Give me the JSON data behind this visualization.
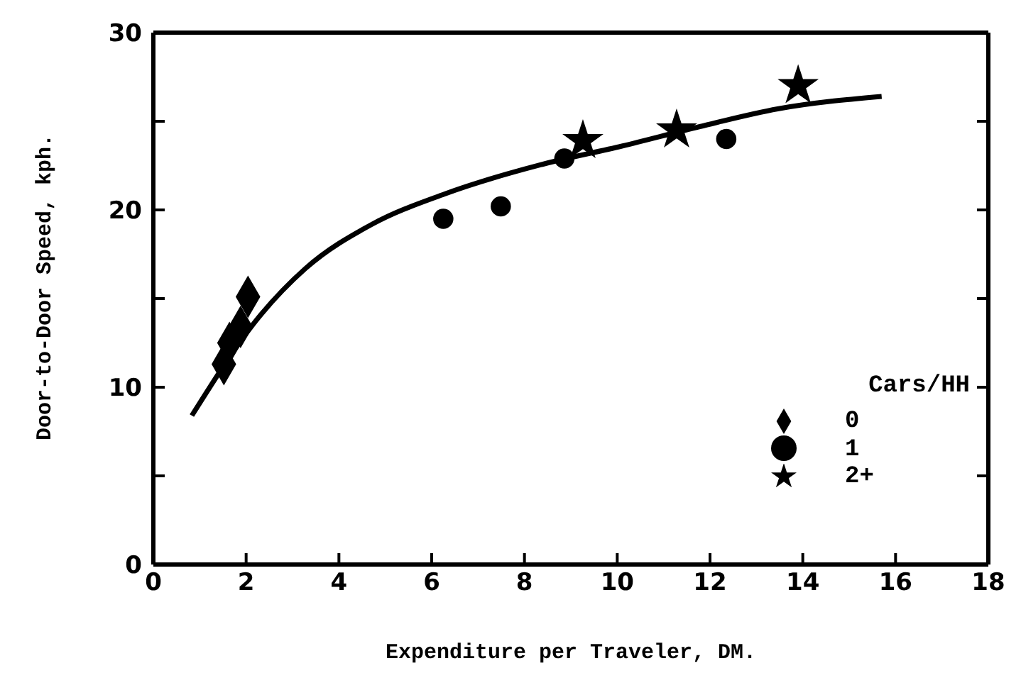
{
  "chart_data": {
    "type": "scatter",
    "xlabel": "Expenditure per Traveler, DM.",
    "ylabel": "Door-to-Door Speed, kph.",
    "legend_title": "Cars/HH",
    "legend": "bottom right",
    "xlim": [
      0,
      18
    ],
    "xticks": [
      0,
      2,
      4,
      6,
      8,
      10,
      12,
      14,
      16,
      18
    ],
    "ylim": [
      0,
      30
    ],
    "yticks": [
      0,
      {
        "value": 5,
        "label": null
      },
      10,
      {
        "value": 15,
        "label": null
      },
      20,
      {
        "value": 25,
        "label": null
      },
      30
    ],
    "grid": false,
    "series": [
      {
        "name": "0",
        "type": "scatter",
        "marker": "diamond",
        "color": "#000000",
        "x": [
          1.52,
          1.64,
          1.88,
          2.04
        ],
        "values": [
          11.3,
          12.5,
          13.4,
          15.1
        ]
      },
      {
        "name": "1",
        "type": "scatter",
        "marker": "circle",
        "color": "#000000",
        "x": [
          6.25,
          7.49,
          8.86,
          12.35
        ],
        "values": [
          19.5,
          20.2,
          22.9,
          24.0
        ]
      },
      {
        "name": "2+",
        "type": "scatter",
        "marker": "star",
        "color": "#000000",
        "x": [
          9.26,
          11.28,
          13.9
        ],
        "values": [
          23.9,
          24.5,
          27.0
        ]
      },
      {
        "type": "line",
        "marker": "none",
        "line_style": "solid",
        "color": "#000000",
        "x": [
          0.83,
          2.32,
          3.28,
          4.72,
          6.28,
          8.43,
          10.1,
          11.78,
          13.46,
          15.7
        ],
        "values": [
          8.4,
          14.1,
          16.7,
          19.2,
          20.9,
          22.6,
          23.6,
          24.7,
          25.7,
          26.4
        ]
      }
    ]
  }
}
